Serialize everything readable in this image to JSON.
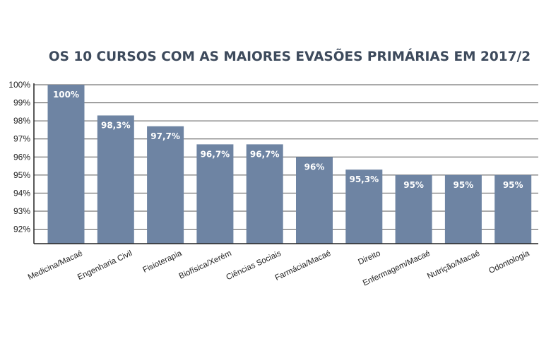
{
  "colors": {
    "bar": "#6e84a3",
    "grid": "#555555",
    "axis": "#222222",
    "title": "#3d4a5c"
  },
  "chart_data": {
    "type": "bar",
    "title": "OS 10 CURSOS COM AS MAIORES EVASÕES PRIMÁRIAS EM 2017/2",
    "categories": [
      "Medicina/Macaé",
      "Engenharia Civil",
      "Fisioterapia",
      "Biofísica/Xerém",
      "Ciências Sociais",
      "Farmácia/Macaé",
      "Direito",
      "Enfermagem/Macaé",
      "Nutrição/Macaé",
      "Odontologia"
    ],
    "values": [
      100,
      98.3,
      97.7,
      96.7,
      96.7,
      96,
      95.3,
      95,
      95,
      95
    ],
    "data_labels": [
      "100%",
      "98,3%",
      "97,7%",
      "96,7%",
      "96,7%",
      "96%",
      "95,3%",
      "95%",
      "95%",
      "95%"
    ],
    "yticks": [
      92,
      93,
      94,
      95,
      96,
      97,
      98,
      99,
      100
    ],
    "ytick_labels": [
      "92%",
      "93%",
      "94%",
      "95%",
      "96%",
      "97%",
      "98%",
      "99%",
      "100%"
    ],
    "ylim": [
      91.2,
      100
    ],
    "grid": true,
    "legend": "none"
  }
}
